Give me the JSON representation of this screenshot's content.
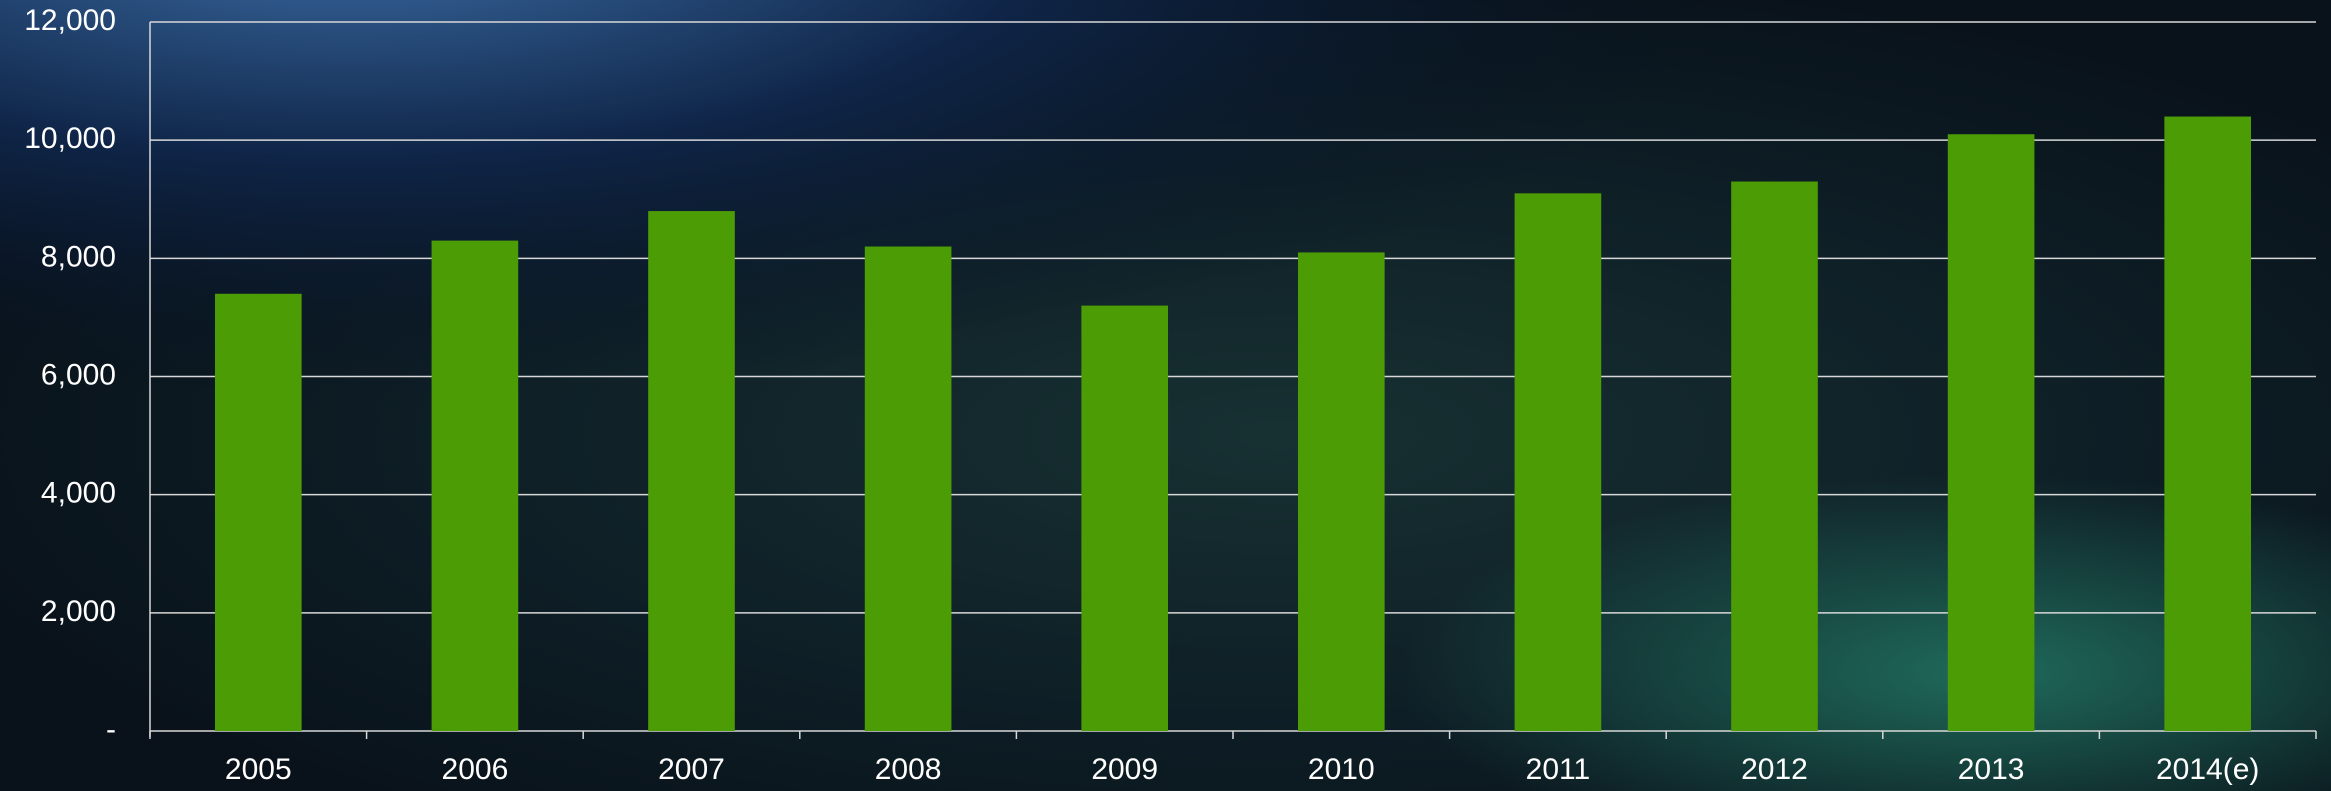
{
  "chart_data": {
    "type": "bar",
    "categories": [
      "2005",
      "2006",
      "2007",
      "2008",
      "2009",
      "2010",
      "2011",
      "2012",
      "2013",
      "2014(e)"
    ],
    "values": [
      7400,
      8300,
      8800,
      8200,
      7200,
      8100,
      9100,
      9300,
      10100,
      10400
    ],
    "color": "#4c9c06",
    "ylim": [
      0,
      12000
    ],
    "yticks": [
      {
        "value": 0,
        "label": "-"
      },
      {
        "value": 2000,
        "label": "2,000"
      },
      {
        "value": 4000,
        "label": "4,000"
      },
      {
        "value": 6000,
        "label": "6,000"
      },
      {
        "value": 8000,
        "label": "8,000"
      },
      {
        "value": 10000,
        "label": "10,000"
      },
      {
        "value": 12000,
        "label": "12,000"
      }
    ],
    "grid": true
  }
}
